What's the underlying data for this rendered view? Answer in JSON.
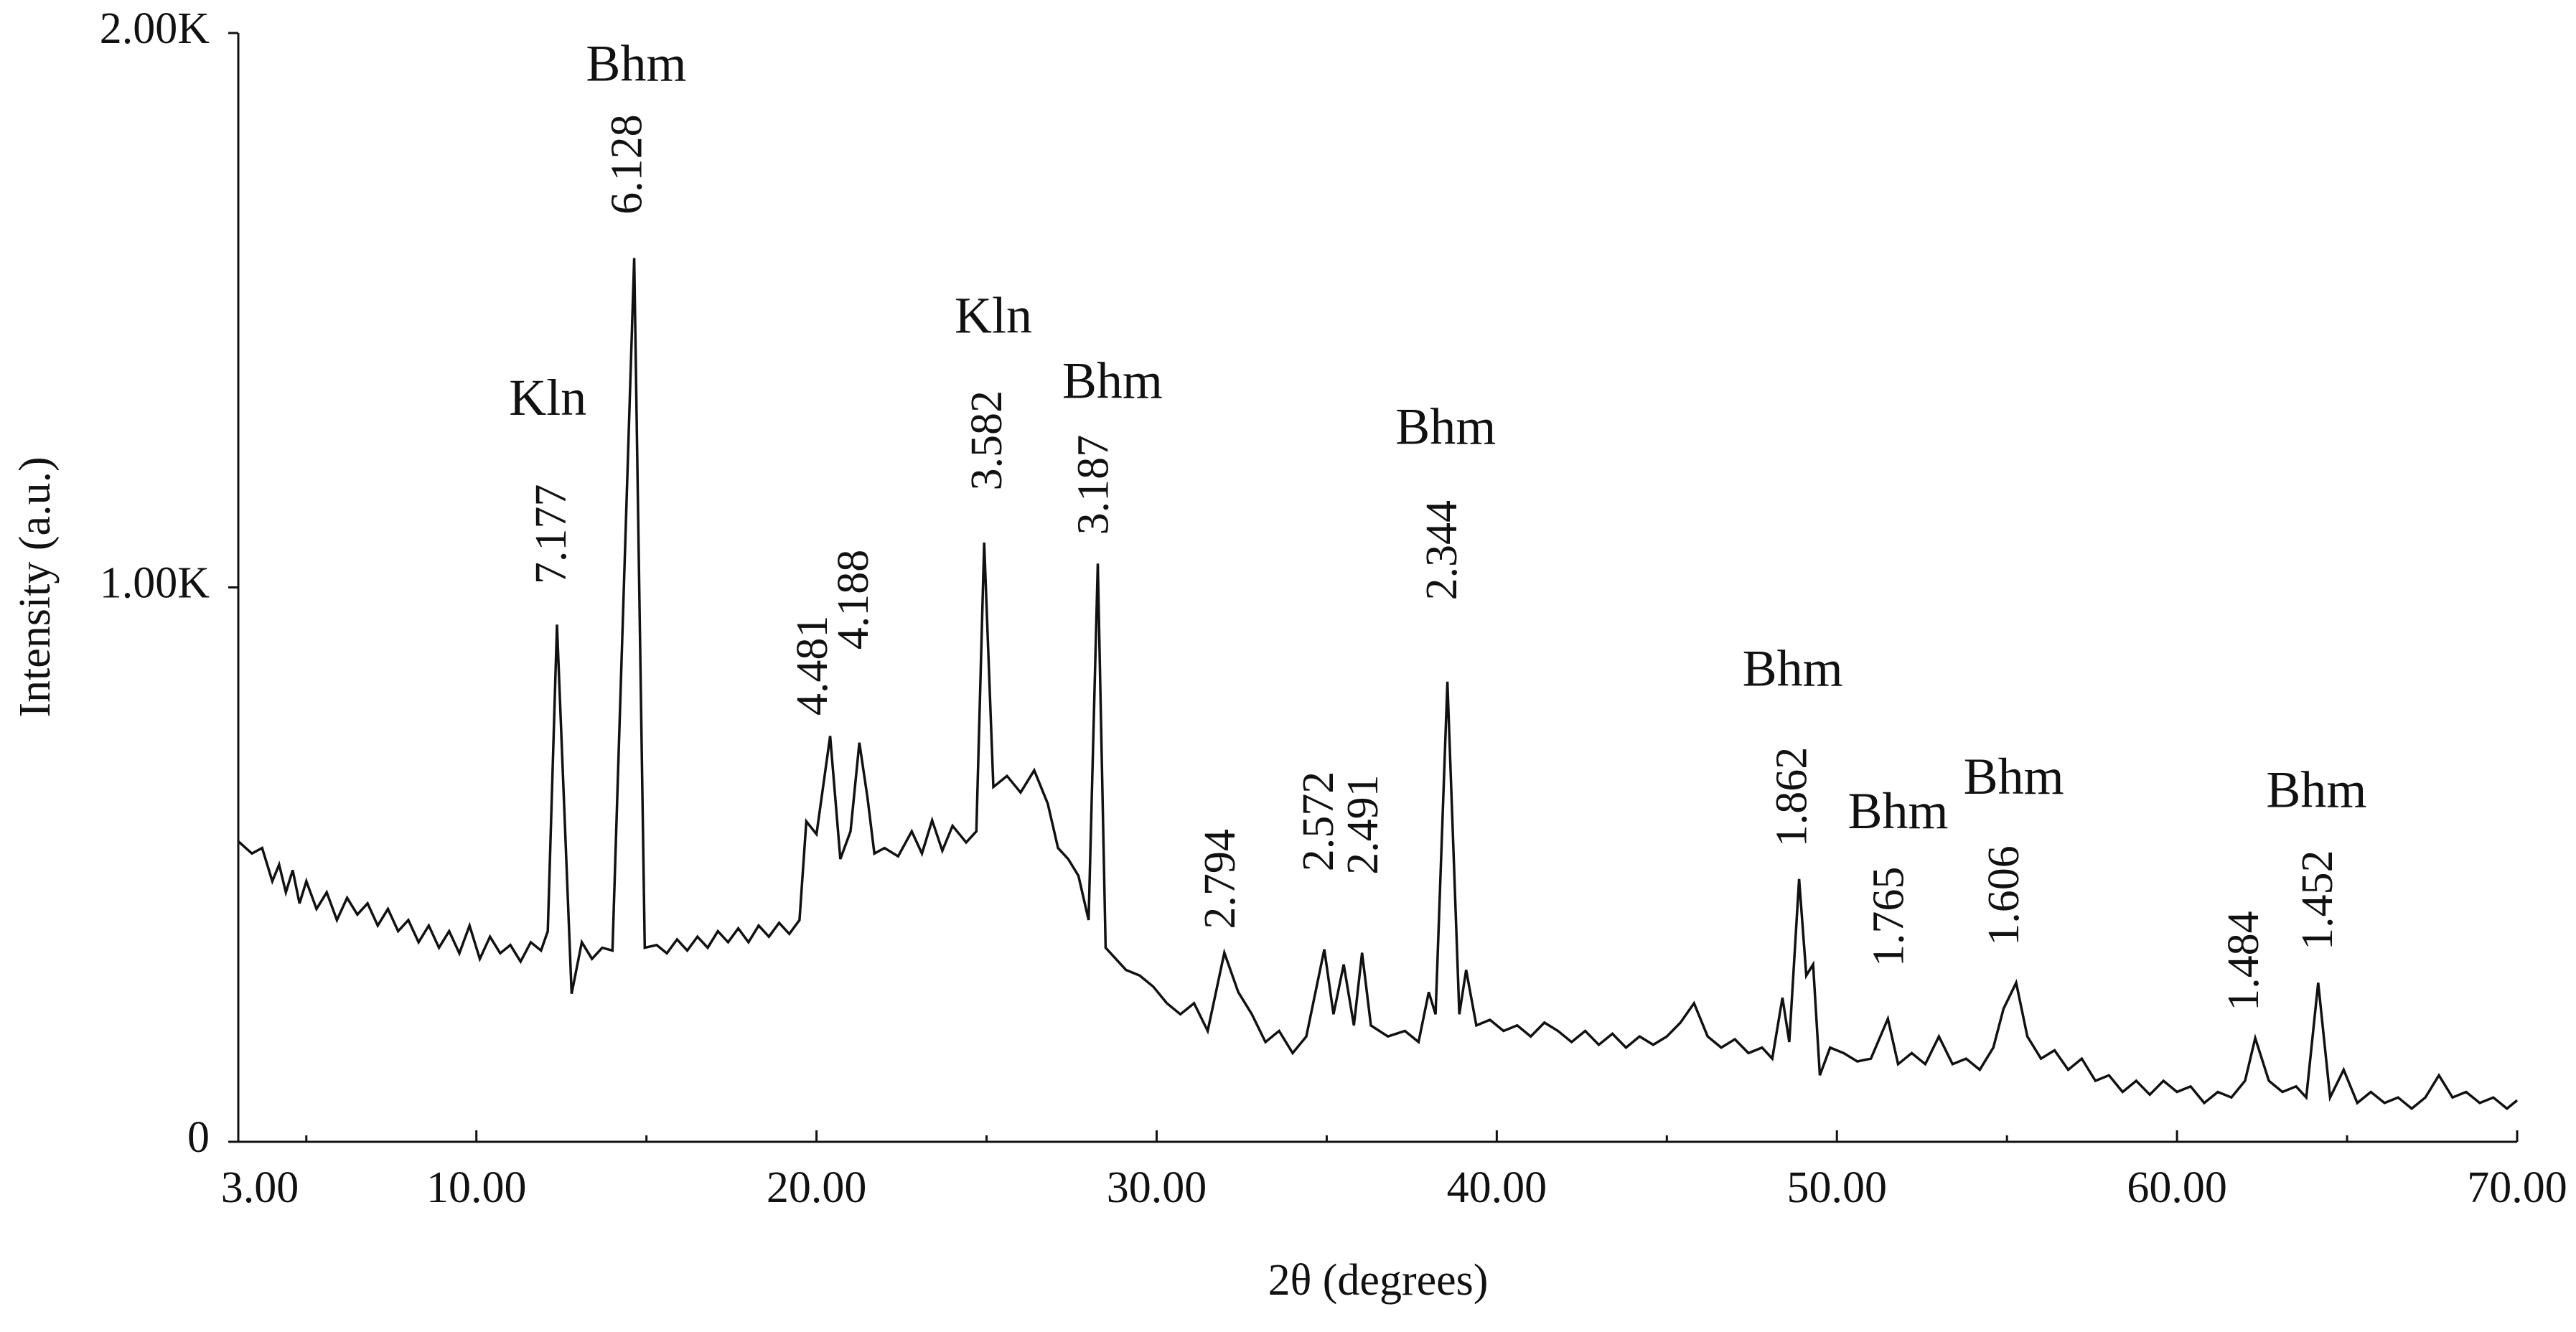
{
  "chart_data": {
    "type": "line",
    "x_label": "2θ (degrees)",
    "y_label": "Intensity (a.u.)",
    "xlim": [
      3,
      70
    ],
    "ylim": [
      0,
      2000
    ],
    "xticks": [
      {
        "value": 3,
        "label": "3.00"
      },
      {
        "value": 10,
        "label": "10.00"
      },
      {
        "value": 20,
        "label": "20.00"
      },
      {
        "value": 30,
        "label": "30.00"
      },
      {
        "value": 40,
        "label": "40.00"
      },
      {
        "value": 50,
        "label": "50.00"
      },
      {
        "value": 60,
        "label": "60.00"
      },
      {
        "value": 70,
        "label": "70.00"
      }
    ],
    "xminorticks": [
      5,
      15,
      25,
      35,
      45,
      55,
      65
    ],
    "yticks": [
      0,
      {
        "value": 1000,
        "label": "1.00K"
      },
      {
        "value": 2000,
        "label": "2.00K"
      }
    ],
    "color": "#111111",
    "x": [
      3.0,
      3.4,
      3.7,
      4.0,
      4.2,
      4.4,
      4.6,
      4.8,
      5.0,
      5.3,
      5.6,
      5.9,
      6.2,
      6.5,
      6.8,
      7.1,
      7.4,
      7.7,
      8.0,
      8.3,
      8.6,
      8.9,
      9.2,
      9.5,
      9.8,
      10.1,
      10.4,
      10.7,
      11.0,
      11.3,
      11.6,
      11.9,
      12.1,
      12.37,
      12.8,
      13.1,
      13.4,
      13.7,
      14.0,
      14.64,
      14.95,
      15.3,
      15.6,
      15.9,
      16.2,
      16.5,
      16.8,
      17.1,
      17.4,
      17.7,
      18.0,
      18.3,
      18.6,
      18.9,
      19.2,
      19.5,
      19.7,
      20.0,
      20.4,
      20.7,
      21.0,
      21.26,
      21.5,
      21.7,
      22.0,
      22.4,
      22.8,
      23.1,
      23.4,
      23.7,
      24.0,
      24.4,
      24.7,
      24.93,
      25.2,
      25.6,
      26.0,
      26.4,
      26.8,
      27.1,
      27.4,
      27.7,
      28.0,
      28.27,
      28.5,
      28.8,
      29.1,
      29.5,
      29.9,
      30.3,
      30.7,
      31.1,
      31.5,
      31.99,
      32.4,
      32.8,
      33.2,
      33.6,
      34.0,
      34.4,
      34.93,
      35.2,
      35.5,
      35.8,
      36.04,
      36.3,
      36.8,
      37.3,
      37.7,
      38.0,
      38.2,
      38.55,
      38.9,
      39.1,
      39.4,
      39.8,
      40.2,
      40.6,
      41.0,
      41.4,
      41.8,
      42.2,
      42.6,
      43.0,
      43.4,
      43.8,
      44.2,
      44.6,
      45.0,
      45.4,
      45.8,
      46.2,
      46.6,
      47.0,
      47.4,
      47.8,
      48.1,
      48.4,
      48.6,
      48.89,
      49.1,
      49.3,
      49.5,
      49.8,
      50.2,
      50.6,
      51.0,
      51.5,
      51.8,
      52.2,
      52.6,
      53.0,
      53.4,
      53.8,
      54.2,
      54.6,
      54.9,
      55.27,
      55.6,
      56.0,
      56.4,
      56.8,
      57.2,
      57.6,
      58.0,
      58.4,
      58.8,
      59.2,
      59.6,
      60.0,
      60.4,
      60.8,
      61.2,
      61.6,
      62.0,
      62.3,
      62.7,
      63.1,
      63.5,
      63.8,
      64.15,
      64.5,
      64.9,
      65.3,
      65.7,
      66.1,
      66.5,
      66.9,
      67.3,
      67.7,
      68.1,
      68.5,
      68.9,
      69.3,
      69.7,
      70.0
    ],
    "values": [
      542,
      520,
      530,
      470,
      500,
      450,
      490,
      430,
      470,
      420,
      450,
      400,
      440,
      410,
      430,
      390,
      420,
      380,
      400,
      360,
      390,
      350,
      380,
      340,
      390,
      330,
      370,
      340,
      355,
      325,
      360,
      345,
      380,
      933,
      267,
      360,
      330,
      350,
      345,
      1594,
      350,
      355,
      340,
      365,
      345,
      370,
      350,
      380,
      360,
      385,
      360,
      390,
      370,
      395,
      375,
      400,
      578,
      555,
      732,
      510,
      560,
      720,
      620,
      520,
      530,
      515,
      560,
      520,
      580,
      525,
      570,
      540,
      560,
      1081,
      640,
      660,
      630,
      670,
      610,
      530,
      510,
      480,
      400,
      1043,
      350,
      330,
      310,
      300,
      280,
      250,
      230,
      250,
      200,
      341,
      270,
      230,
      180,
      200,
      160,
      190,
      347,
      230,
      320,
      210,
      341,
      210,
      190,
      200,
      180,
      270,
      230,
      830,
      230,
      310,
      210,
      220,
      200,
      210,
      190,
      215,
      200,
      180,
      200,
      175,
      195,
      170,
      190,
      175,
      190,
      215,
      250,
      190,
      170,
      185,
      160,
      170,
      150,
      260,
      180,
      474,
      300,
      320,
      120,
      170,
      160,
      145,
      150,
      222,
      140,
      160,
      140,
      190,
      140,
      150,
      130,
      170,
      240,
      287,
      190,
      150,
      165,
      130,
      150,
      110,
      120,
      90,
      110,
      85,
      110,
      90,
      100,
      70,
      90,
      80,
      110,
      187,
      110,
      90,
      100,
      80,
      287,
      80,
      130,
      70,
      90,
      70,
      80,
      60,
      80,
      120,
      80,
      90,
      70,
      80,
      60,
      75
    ],
    "peak_labels": [
      {
        "text": "7.177",
        "x": 12.32,
        "y": 1096
      },
      {
        "text": "6.128",
        "x": 14.55,
        "y": 1763
      },
      {
        "text": "4.481",
        "x": 20.0,
        "y": 859
      },
      {
        "text": "4.188",
        "x": 21.21,
        "y": 978
      },
      {
        "text": "3.582",
        "x": 25.13,
        "y": 1265
      },
      {
        "text": "3.187",
        "x": 28.27,
        "y": 1185
      },
      {
        "text": "2.794",
        "x": 31.99,
        "y": 474
      },
      {
        "text": "2.572",
        "x": 34.88,
        "y": 578
      },
      {
        "text": "2.491",
        "x": 36.19,
        "y": 572
      },
      {
        "text": "2.344",
        "x": 38.51,
        "y": 1067
      },
      {
        "text": "1.862",
        "x": 48.8,
        "y": 622
      },
      {
        "text": "1.765",
        "x": 51.65,
        "y": 406
      },
      {
        "text": "1.606",
        "x": 55.03,
        "y": 444
      },
      {
        "text": "1.484",
        "x": 62.08,
        "y": 326
      },
      {
        "text": "1.452",
        "x": 64.26,
        "y": 436
      }
    ],
    "phase_labels": [
      {
        "text": "Kln",
        "x": 12.1,
        "y": 1333
      },
      {
        "text": "Bhm",
        "x": 14.7,
        "y": 1935
      },
      {
        "text": "Kln",
        "x": 25.2,
        "y": 1481
      },
      {
        "text": "Bhm",
        "x": 28.7,
        "y": 1363
      },
      {
        "text": "Bhm",
        "x": 38.5,
        "y": 1280
      },
      {
        "text": "Bhm",
        "x": 48.7,
        "y": 844
      },
      {
        "text": "Bhm",
        "x": 51.8,
        "y": 587
      },
      {
        "text": "Bhm",
        "x": 55.2,
        "y": 649
      },
      {
        "text": "Bhm",
        "x": 64.1,
        "y": 625
      }
    ]
  }
}
